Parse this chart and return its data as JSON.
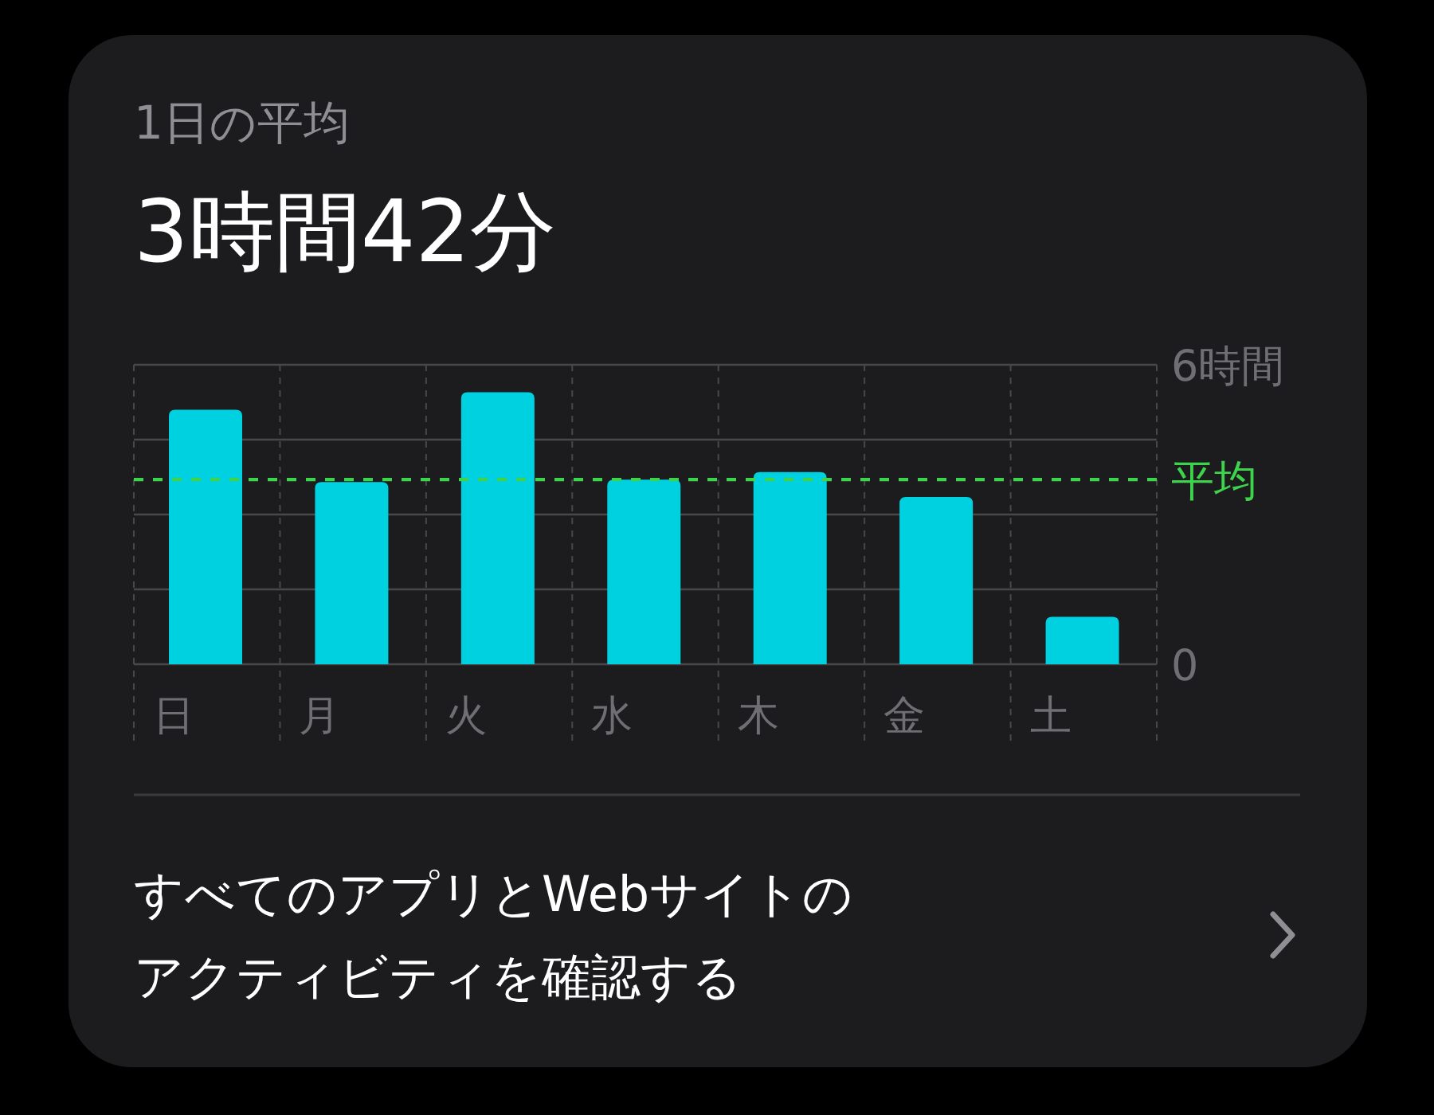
{
  "chart_data": {
    "type": "bar",
    "title": "1日の平均",
    "subtitle": "3時間42分",
    "categories": [
      "日",
      "月",
      "火",
      "水",
      "木",
      "金",
      "土"
    ],
    "values": [
      5.1,
      3.65,
      5.45,
      3.7,
      3.85,
      3.35,
      0.95
    ],
    "color": "#00d1e0",
    "ylim": [
      0,
      6
    ],
    "yticks": [
      0,
      {
        "value": 1.5,
        "label": null
      },
      {
        "value": 3,
        "label": null
      },
      {
        "value": 4.5,
        "label": null
      },
      {
        "value": 6,
        "label": "6時間"
      }
    ],
    "grid": true,
    "ref_lines": [
      {
        "axis": "y",
        "value": 3.7,
        "label": "平均",
        "color": "#3ed34c",
        "line_style": "dashed"
      }
    ],
    "annotations": [
      "すべてのアプリとWebサイトのアクティビティを確認する"
    ]
  }
}
